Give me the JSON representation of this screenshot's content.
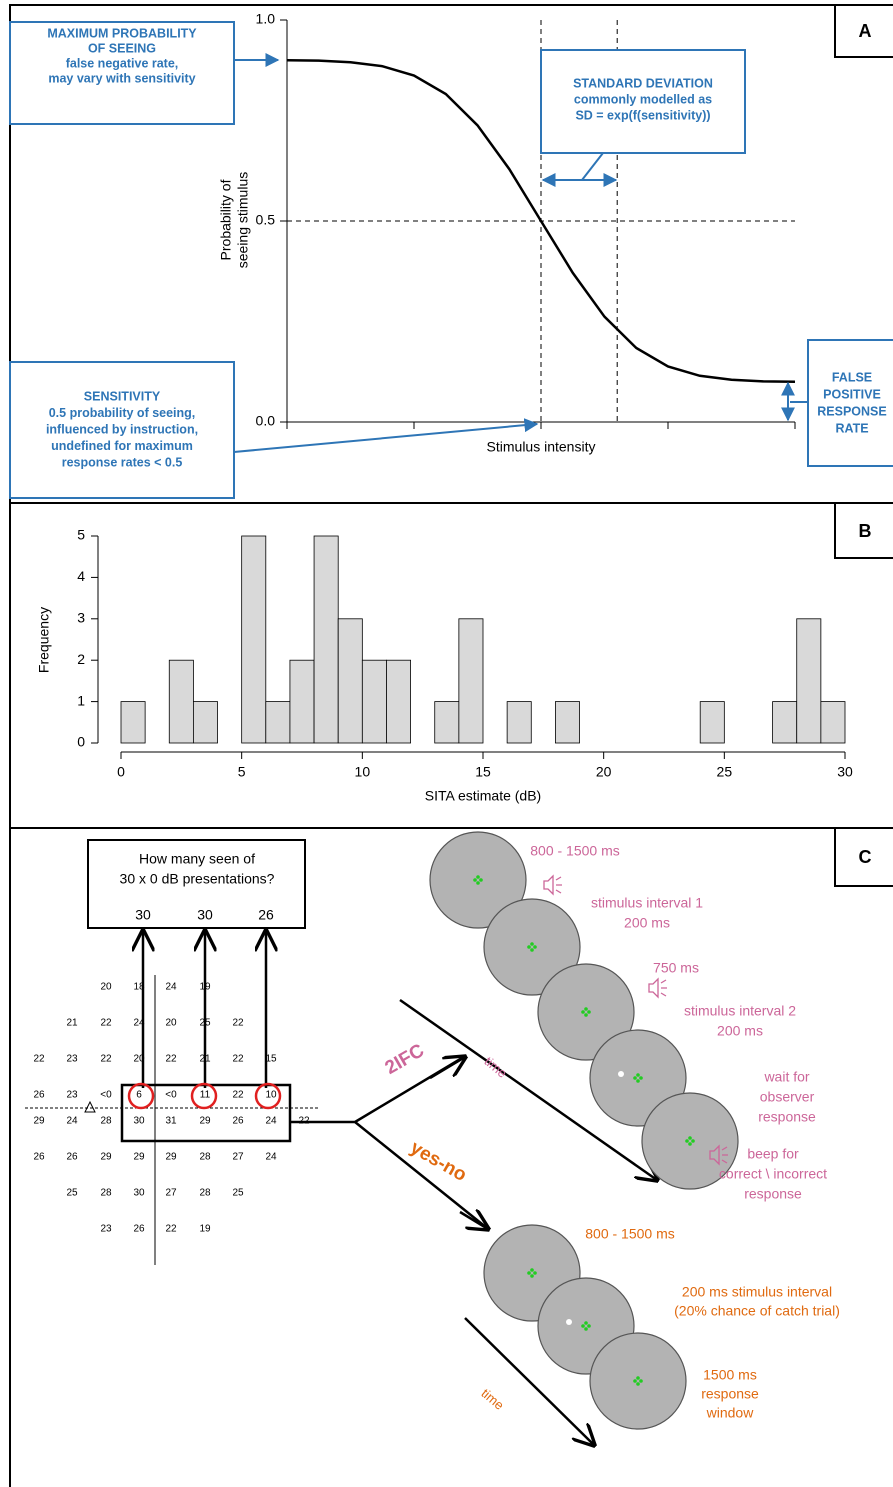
{
  "chart_data": [
    {
      "type": "line",
      "panel": "A",
      "ylabel": [
        "Probability of",
        "seeing stimulus"
      ],
      "xlabel": "Stimulus intensity",
      "x": [
        0,
        0.25,
        0.5,
        0.75,
        1,
        1.25,
        1.5,
        1.75,
        2,
        2.25,
        2.5,
        2.75,
        3,
        3.25,
        3.5,
        3.75,
        4
      ],
      "series": [
        {
          "color": "#000000",
          "values": [
            0.9,
            0.899,
            0.895,
            0.885,
            0.862,
            0.816,
            0.738,
            0.629,
            0.5,
            0.371,
            0.262,
            0.184,
            0.138,
            0.115,
            0.105,
            0.101,
            0.1
          ]
        }
      ],
      "xlim": [
        0,
        4
      ],
      "xticks": [
        0,
        1,
        2,
        3,
        4
      ],
      "ylim": [
        0,
        1
      ],
      "yticks": [
        {
          "value": 0,
          "label": "0.0"
        },
        0.5,
        {
          "value": 1,
          "label": "1.0"
        }
      ],
      "reference_lines": {
        "x": [
          2,
          2.6
        ],
        "y": [
          0.5
        ]
      },
      "annotations": {
        "maximum": [
          "MAXIMUM PROBABILITY",
          "OF SEEING",
          "false negative rate,",
          "may vary with sensitivity"
        ],
        "sd": [
          "STANDARD DEVIATION",
          "commonly modelled as",
          "SD = exp(f(sensitivity))"
        ],
        "sensitivity": [
          "SENSITIVITY",
          "0.5 probability of seeing,",
          "influenced by instruction,",
          "undefined for maximum",
          "response rates < 0.5"
        ],
        "false_positive": [
          "FALSE",
          "POSITIVE",
          "RESPONSE",
          "RATE"
        ]
      }
    },
    {
      "type": "histogram",
      "panel": "B",
      "xlabel": "SITA estimate (dB)",
      "ylabel": "Frequency",
      "bins": [
        0,
        1,
        2,
        3,
        4,
        5,
        6,
        7,
        8,
        9,
        10,
        11,
        12,
        13,
        14,
        15,
        16,
        17,
        18,
        19,
        20,
        21,
        22,
        23,
        24,
        25,
        26,
        27,
        28,
        29,
        30
      ],
      "values": [
        1,
        0,
        2,
        1,
        0,
        5,
        1,
        2,
        5,
        3,
        2,
        2,
        0,
        1,
        3,
        0,
        1,
        0,
        1,
        0,
        0,
        0,
        0,
        0,
        1,
        0,
        0,
        1,
        3,
        1
      ],
      "color": "#d9d9d9",
      "xlim": [
        0,
        30
      ],
      "xticks": [
        0,
        5,
        10,
        15,
        20,
        25,
        30
      ],
      "ylim": [
        0,
        5
      ],
      "yticks": [
        0,
        1,
        2,
        3,
        4,
        5
      ]
    }
  ],
  "diagram": {
    "panel": "C",
    "question": [
      "How many seen of",
      "30 x 0 dB presentations?"
    ],
    "seen": [
      "30",
      "30",
      "26"
    ],
    "field": [
      [
        "20",
        "18",
        "24",
        "19"
      ],
      [
        "21",
        "22",
        "24",
        "20",
        "25",
        "22"
      ],
      [
        "22",
        "23",
        "22",
        "20",
        "22",
        "21",
        "22",
        "15"
      ],
      [
        "26",
        "23",
        "<0",
        "6",
        "<0",
        "11",
        "22",
        "10"
      ],
      [
        "29",
        "24",
        "28",
        "30",
        "31",
        "29",
        "26",
        "24",
        "22"
      ],
      [
        "26",
        "26",
        "29",
        "29",
        "29",
        "28",
        "27",
        "24"
      ],
      [
        "25",
        "28",
        "30",
        "27",
        "28",
        "25"
      ],
      [
        "23",
        "26",
        "22",
        "19"
      ]
    ],
    "ifc": {
      "label": "2IFC",
      "time": "time",
      "steps": [
        [
          "800 - 1500 ms"
        ],
        [
          "stimulus interval 1",
          "200 ms"
        ],
        [
          "750 ms"
        ],
        [
          "stimulus interval 2",
          "200 ms"
        ],
        [
          "wait for",
          "observer",
          "response"
        ],
        [
          "beep for",
          "correct \\ incorrect",
          "response"
        ]
      ]
    },
    "yesno": {
      "label": "yes-no",
      "time": "time",
      "steps": [
        [
          "800 - 1500 ms"
        ],
        [
          "200 ms stimulus interval",
          "(20% chance of catch trial)"
        ],
        [
          "1500 ms",
          "response",
          "window"
        ]
      ]
    }
  }
}
